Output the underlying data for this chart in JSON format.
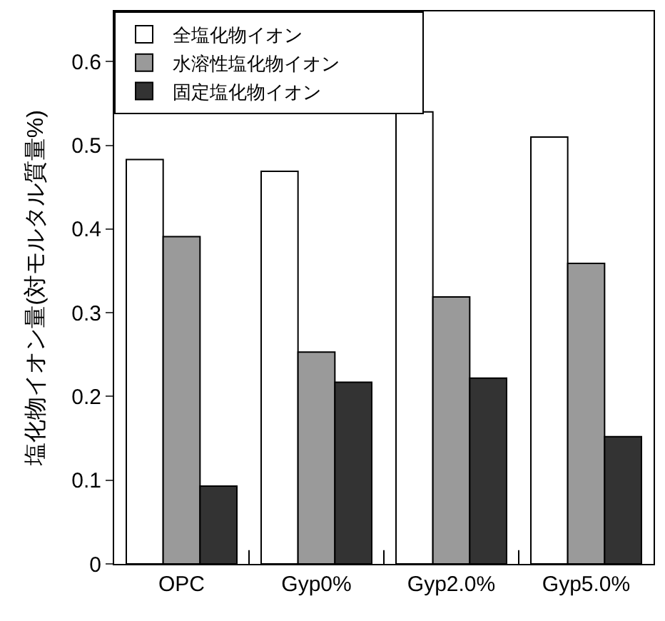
{
  "chart_data": {
    "type": "bar",
    "ylabel": "塩化物イオン量(対モルタル質量%)",
    "categories": [
      "OPC",
      "Gyp0%",
      "Gyp2.0%",
      "Gyp5.0%"
    ],
    "series": [
      {
        "name": "全塩化物イオン",
        "color": "#ffffff",
        "values": [
          0.483,
          0.469,
          0.54,
          0.51
        ]
      },
      {
        "name": "水溶性塩化物イオン",
        "color": "#9a9a9a",
        "values": [
          0.391,
          0.253,
          0.319,
          0.359
        ]
      },
      {
        "name": "固定塩化物イオン",
        "color": "#333333",
        "values": [
          0.093,
          0.217,
          0.222,
          0.152
        ]
      }
    ],
    "ylim": [
      0,
      0.66
    ],
    "yticks": [
      {
        "value": 0,
        "label": "0"
      },
      0.1,
      0.2,
      0.3,
      0.4,
      0.5,
      0.6
    ],
    "legend": "top"
  }
}
